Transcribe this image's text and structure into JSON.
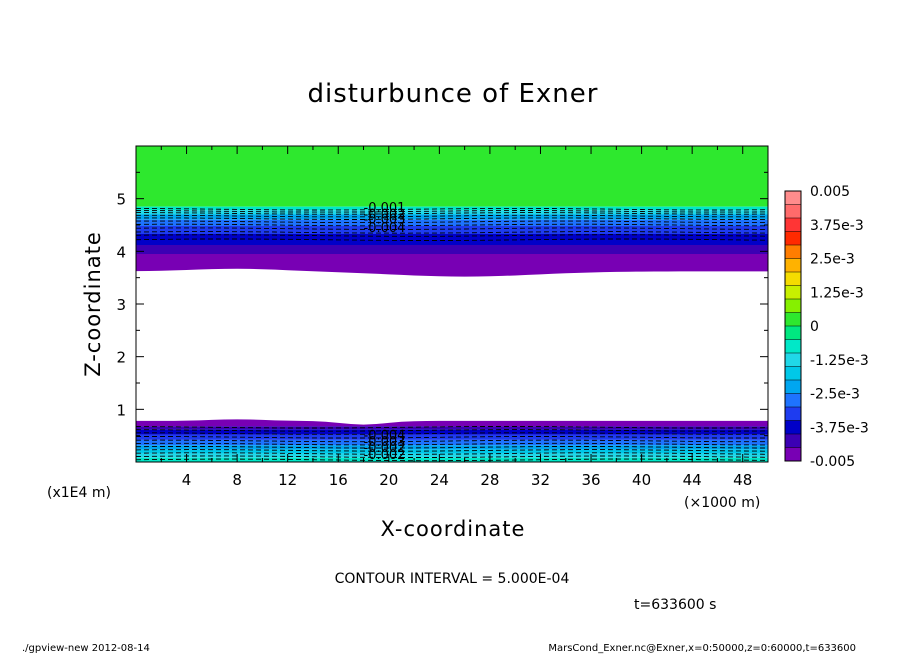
{
  "chart_data": {
    "type": "heatmap",
    "title": "disturbunce of Exner",
    "xlabel": "X-coordinate",
    "ylabel": "Z-coordinate",
    "x_unit": "(×1000 m)",
    "y_unit": "(x1E4 m)",
    "xlim": [
      0,
      50
    ],
    "ylim": [
      0,
      6
    ],
    "x_ticks": [
      4,
      8,
      12,
      16,
      20,
      24,
      28,
      32,
      36,
      40,
      44,
      48
    ],
    "y_ticks": [
      1,
      2,
      3,
      4,
      5
    ],
    "colorbar_labels": [
      "0.005",
      "3.75e-3",
      "2.5e-3",
      "1.25e-3",
      "0",
      "-1.25e-3",
      "-2.5e-3",
      "-3.75e-3",
      "-0.005"
    ],
    "colorbar_range": [
      -0.005,
      0.005
    ],
    "contour_interval_text": "CONTOUR INTERVAL = 5.000E-04",
    "time_text": "t=633600 s",
    "contour_labels": [
      "-0.001",
      "-0.002",
      "-0.003",
      "-0.004"
    ],
    "regions": [
      {
        "z_from": 4.85,
        "z_to": 6.0,
        "value": 0.0002
      },
      {
        "z_from": 0.0,
        "z_to": 0.8,
        "value": -0.003
      },
      {
        "z_from": 3.6,
        "z_to": 4.85,
        "value": -0.004
      }
    ]
  },
  "footer": {
    "left": "./gpview-new   2012-08-14",
    "right": "MarsCond_Exner.nc@Exner,x=0:50000,z=0:60000,t=633600"
  }
}
